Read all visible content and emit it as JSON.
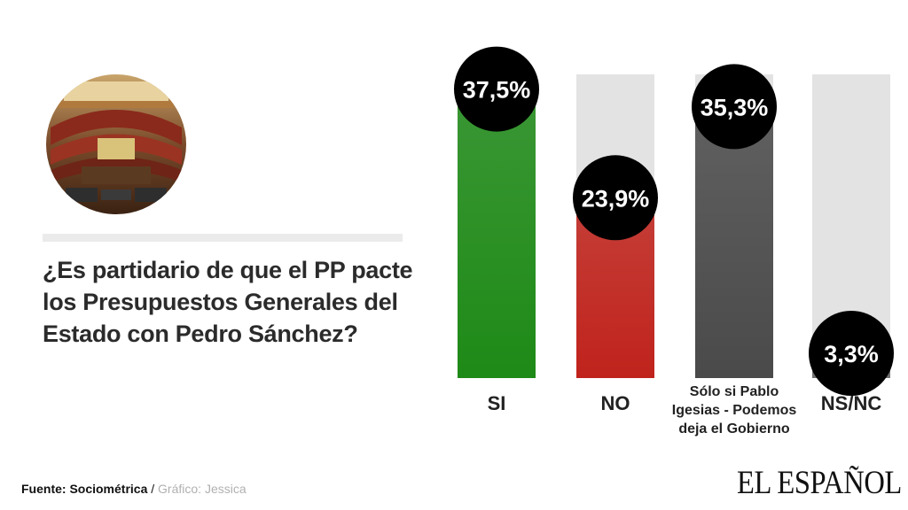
{
  "question": "¿Es partidario de que el PP pacte los Presupuestos Generales  del Estado con Pedro Sánchez?",
  "chart_data": {
    "type": "bar",
    "categories": [
      "SI",
      "NO",
      "Sólo si Pablo Igesias - Podemos deja el Gobierno",
      "NS/NC"
    ],
    "category_lines": [
      [
        "SI"
      ],
      [
        "NO"
      ],
      [
        "Sólo si Pablo",
        "Igesias - Podemos",
        "deja el Gobierno"
      ],
      [
        "NS/NC"
      ]
    ],
    "values": [
      37.5,
      23.9,
      35.3,
      3.3
    ],
    "value_labels": [
      "37,5%",
      "23,9%",
      "35,3%",
      "3,3%"
    ],
    "ylim": [
      0,
      40
    ],
    "colors": [
      "#1e8a17",
      "#c0231c",
      "#4a4a4a",
      "#707070"
    ],
    "track_color": "#e3e3e3",
    "label_bubble_color": "#000000",
    "grid": false
  },
  "footer": {
    "source": "Fuente: Sociométrica",
    "separator": " / ",
    "credit": "Gráfico: Jessica"
  },
  "logo": "EL ESPAÑOL"
}
